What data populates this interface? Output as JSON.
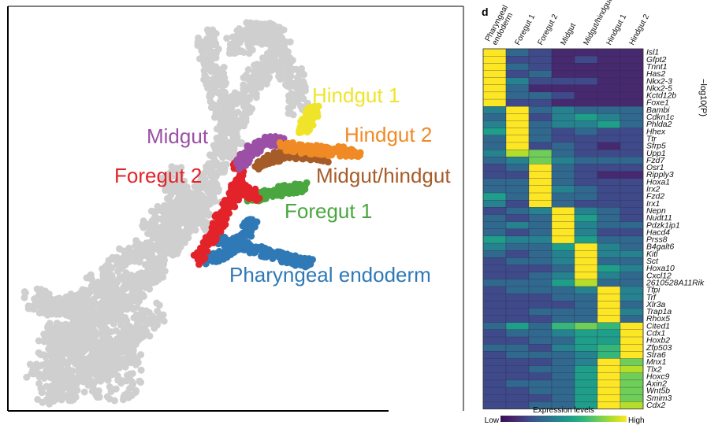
{
  "clusters": [
    {
      "id": "pharyngeal",
      "label": "Pharyngeal endoderm",
      "color": "#2f79b6"
    },
    {
      "id": "foregut1",
      "label": "Foregut 1",
      "color": "#4aa63f"
    },
    {
      "id": "foregut2",
      "label": "Foregut 2",
      "color": "#e3232a"
    },
    {
      "id": "midgut",
      "label": "Midgut",
      "color": "#9b50a6"
    },
    {
      "id": "midhind",
      "label": "Midgut/hindgut",
      "color": "#a65c28"
    },
    {
      "id": "hindgut1",
      "label": "Hindgut 1",
      "color": "#f0e42a"
    },
    {
      "id": "hindgut2",
      "label": "Hindgut 2",
      "color": "#f08a25"
    }
  ],
  "background_color": "#cfcfcf",
  "heatmap": {
    "panel_letter": "d",
    "columns": [
      "Pharyngeal\nendoderm",
      "Foregut 1",
      "Foregut 2",
      "Midgut",
      "Midgut/hindgut",
      "Hindgut 1",
      "Hindgut 2"
    ],
    "genes": [
      "Isl1",
      "Gfpt2",
      "Tnnt1",
      "Has2",
      "Nkx2-3",
      "Nkx2-5",
      "Kctd12b",
      "Foxe1",
      "Bambi",
      "Cdkn1c",
      "Phlda2",
      "Hhex",
      "Ttr",
      "Sfrp5",
      "Upp1",
      "Fzd7",
      "Osr1",
      "Ripply3",
      "Hoxa1",
      "Irx2",
      "Fzd2",
      "Irx1",
      "Nepn",
      "Nudt11",
      "Pdzk1ip1",
      "Hacd4",
      "Prss8",
      "B4galt6",
      "Kitl",
      "Sct",
      "Hoxa10",
      "Cxcl12",
      "2610528A11Rik",
      "Tfpi",
      "Trf",
      "Xlr3a",
      "Trap1a",
      "Rhox5",
      "Cited1",
      "Cdx1",
      "Hoxb2",
      "Zfp503",
      "Stra6",
      "Mnx1",
      "Tlx2",
      "Hoxc9",
      "Axin2",
      "Wnt5b",
      "Smim3",
      "Cdx2"
    ],
    "values": [
      [
        0.98,
        0.3,
        0.2,
        0.12,
        0.15,
        0.1,
        0.12
      ],
      [
        0.98,
        0.25,
        0.22,
        0.14,
        0.2,
        0.12,
        0.1
      ],
      [
        0.96,
        0.35,
        0.18,
        0.1,
        0.12,
        0.15,
        0.14
      ],
      [
        0.98,
        0.2,
        0.28,
        0.16,
        0.14,
        0.1,
        0.12
      ],
      [
        0.97,
        0.4,
        0.25,
        0.2,
        0.18,
        0.12,
        0.1
      ],
      [
        0.98,
        0.3,
        0.15,
        0.12,
        0.14,
        0.11,
        0.13
      ],
      [
        0.96,
        0.28,
        0.35,
        0.18,
        0.16,
        0.12,
        0.14
      ],
      [
        0.98,
        0.22,
        0.18,
        0.15,
        0.12,
        0.1,
        0.11
      ],
      [
        0.45,
        0.97,
        0.35,
        0.4,
        0.3,
        0.28,
        0.3
      ],
      [
        0.3,
        0.98,
        0.25,
        0.45,
        0.5,
        0.4,
        0.35
      ],
      [
        0.4,
        0.96,
        0.3,
        0.45,
        0.42,
        0.5,
        0.38
      ],
      [
        0.5,
        0.97,
        0.28,
        0.25,
        0.3,
        0.2,
        0.22
      ],
      [
        0.35,
        0.98,
        0.3,
        0.2,
        0.25,
        0.18,
        0.2
      ],
      [
        0.3,
        0.96,
        0.25,
        0.3,
        0.2,
        0.15,
        0.18
      ],
      [
        0.45,
        0.9,
        0.75,
        0.3,
        0.25,
        0.2,
        0.22
      ],
      [
        0.3,
        0.45,
        0.82,
        0.4,
        0.35,
        0.3,
        0.28
      ],
      [
        0.25,
        0.3,
        0.97,
        0.35,
        0.25,
        0.2,
        0.18
      ],
      [
        0.2,
        0.25,
        0.98,
        0.3,
        0.2,
        0.15,
        0.16
      ],
      [
        0.3,
        0.35,
        0.96,
        0.28,
        0.25,
        0.2,
        0.22
      ],
      [
        0.35,
        0.28,
        0.97,
        0.4,
        0.3,
        0.25,
        0.2
      ],
      [
        0.55,
        0.35,
        0.95,
        0.3,
        0.28,
        0.22,
        0.2
      ],
      [
        0.4,
        0.25,
        0.96,
        0.3,
        0.25,
        0.22,
        0.18
      ],
      [
        0.25,
        0.3,
        0.4,
        0.98,
        0.45,
        0.3,
        0.25
      ],
      [
        0.3,
        0.25,
        0.35,
        0.97,
        0.5,
        0.28,
        0.22
      ],
      [
        0.35,
        0.4,
        0.3,
        0.96,
        0.4,
        0.3,
        0.3
      ],
      [
        0.28,
        0.22,
        0.35,
        0.97,
        0.45,
        0.25,
        0.2
      ],
      [
        0.5,
        0.45,
        0.4,
        0.96,
        0.55,
        0.35,
        0.3
      ],
      [
        0.4,
        0.35,
        0.3,
        0.6,
        0.96,
        0.4,
        0.35
      ],
      [
        0.3,
        0.25,
        0.28,
        0.45,
        0.98,
        0.45,
        0.4
      ],
      [
        0.25,
        0.3,
        0.35,
        0.4,
        0.97,
        0.38,
        0.32
      ],
      [
        0.2,
        0.22,
        0.25,
        0.35,
        0.96,
        0.5,
        0.45
      ],
      [
        0.22,
        0.25,
        0.3,
        0.45,
        0.95,
        0.4,
        0.35
      ],
      [
        0.3,
        0.28,
        0.35,
        0.6,
        0.85,
        0.3,
        0.28
      ],
      [
        0.25,
        0.3,
        0.28,
        0.3,
        0.4,
        0.98,
        0.45
      ],
      [
        0.2,
        0.22,
        0.25,
        0.28,
        0.35,
        0.97,
        0.4
      ],
      [
        0.18,
        0.2,
        0.22,
        0.25,
        0.3,
        0.98,
        0.35
      ],
      [
        0.22,
        0.25,
        0.28,
        0.3,
        0.38,
        0.96,
        0.42
      ],
      [
        0.2,
        0.22,
        0.25,
        0.28,
        0.32,
        0.97,
        0.38
      ],
      [
        0.3,
        0.55,
        0.35,
        0.7,
        0.75,
        0.72,
        0.97
      ],
      [
        0.25,
        0.3,
        0.28,
        0.4,
        0.6,
        0.55,
        0.98
      ],
      [
        0.22,
        0.25,
        0.3,
        0.35,
        0.55,
        0.6,
        0.97
      ],
      [
        0.28,
        0.3,
        0.25,
        0.4,
        0.5,
        0.65,
        0.96
      ],
      [
        0.25,
        0.28,
        0.3,
        0.35,
        0.45,
        0.68,
        0.97
      ],
      [
        0.2,
        0.22,
        0.25,
        0.3,
        0.45,
        0.98,
        0.82
      ],
      [
        0.22,
        0.25,
        0.28,
        0.35,
        0.5,
        0.97,
        0.85
      ],
      [
        0.2,
        0.22,
        0.25,
        0.3,
        0.55,
        0.96,
        0.8
      ],
      [
        0.25,
        0.28,
        0.3,
        0.35,
        0.5,
        0.97,
        0.83
      ],
      [
        0.22,
        0.25,
        0.28,
        0.32,
        0.52,
        0.95,
        0.82
      ],
      [
        0.2,
        0.22,
        0.25,
        0.3,
        0.55,
        0.96,
        0.78
      ],
      [
        0.22,
        0.25,
        0.28,
        0.35,
        0.6,
        0.97,
        0.85
      ]
    ],
    "side_label": "−log10(P)",
    "legend": {
      "title": "Expression levels",
      "low": "Low",
      "high": "High"
    },
    "colormap": [
      "#3b0f5a",
      "#47296f",
      "#3f4a8a",
      "#31688e",
      "#26828e",
      "#1f9e89",
      "#35b779",
      "#6ece58",
      "#b5de2b",
      "#fde725"
    ]
  }
}
